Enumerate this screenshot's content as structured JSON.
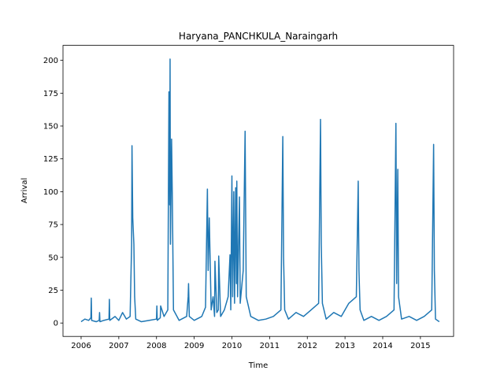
{
  "chart_data": {
    "type": "line",
    "title": "Haryana_PANCHKULA_Naraingarh",
    "x_label": "Time",
    "y_label": "Arrival",
    "x": [
      2006.0,
      2006.1,
      2006.2,
      2006.26,
      2006.27,
      2006.28,
      2006.4,
      2006.48,
      2006.49,
      2006.5,
      2006.6,
      2006.74,
      2006.75,
      2006.76,
      2006.9,
      2007.0,
      2007.1,
      2007.2,
      2007.3,
      2007.34,
      2007.35,
      2007.37,
      2007.4,
      2007.42,
      2007.45,
      2007.6,
      2007.8,
      2008.0,
      2008.01,
      2008.02,
      2008.1,
      2008.11,
      2008.2,
      2008.3,
      2008.33,
      2008.35,
      2008.36,
      2008.37,
      2008.4,
      2008.42,
      2008.45,
      2008.6,
      2008.8,
      2008.84,
      2008.85,
      2008.87,
      2009.0,
      2009.2,
      2009.3,
      2009.35,
      2009.37,
      2009.4,
      2009.45,
      2009.5,
      2009.54,
      2009.55,
      2009.6,
      2009.64,
      2009.65,
      2009.7,
      2009.8,
      2009.9,
      2009.95,
      2009.97,
      2010.0,
      2010.02,
      2010.05,
      2010.07,
      2010.1,
      2010.12,
      2010.13,
      2010.15,
      2010.2,
      2010.22,
      2010.3,
      2010.35,
      2010.38,
      2010.5,
      2010.7,
      2010.9,
      2011.1,
      2011.3,
      2011.35,
      2011.37,
      2011.4,
      2011.5,
      2011.7,
      2011.9,
      2012.1,
      2012.3,
      2012.35,
      2012.37,
      2012.4,
      2012.5,
      2012.7,
      2012.9,
      2013.1,
      2013.3,
      2013.35,
      2013.37,
      2013.4,
      2013.5,
      2013.7,
      2013.9,
      2014.1,
      2014.3,
      2014.35,
      2014.37,
      2014.4,
      2014.42,
      2014.5,
      2014.7,
      2014.9,
      2015.1,
      2015.3,
      2015.35,
      2015.37,
      2015.4,
      2015.5
    ],
    "series": [
      {
        "name": "Arrival",
        "color": "#1f77b4",
        "values": [
          1,
          3,
          2,
          4,
          19,
          2,
          1,
          2,
          8,
          1,
          2,
          3,
          18,
          2,
          5,
          2,
          8,
          3,
          5,
          60,
          135,
          80,
          60,
          20,
          3,
          1,
          2,
          3,
          13,
          2,
          4,
          13,
          5,
          10,
          176,
          90,
          201,
          60,
          140,
          95,
          10,
          2,
          5,
          20,
          30,
          5,
          2,
          5,
          12,
          102,
          40,
          80,
          10,
          20,
          5,
          47,
          8,
          10,
          51,
          5,
          10,
          20,
          52,
          10,
          112,
          20,
          100,
          15,
          103,
          30,
          108,
          20,
          96,
          15,
          40,
          146,
          20,
          5,
          2,
          3,
          5,
          10,
          142,
          50,
          10,
          3,
          8,
          5,
          10,
          15,
          155,
          60,
          15,
          3,
          8,
          5,
          15,
          20,
          108,
          40,
          10,
          2,
          5,
          2,
          5,
          10,
          152,
          30,
          117,
          20,
          3,
          5,
          2,
          5,
          10,
          136,
          40,
          3,
          1
        ]
      }
    ],
    "xlim": [
      2005.52,
      2015.88
    ],
    "xticks": [
      2006,
      2007,
      2008,
      2009,
      2010,
      2011,
      2012,
      2013,
      2014,
      2015
    ],
    "ylim": [
      -10.2,
      211.4
    ],
    "yticks": [
      0,
      25,
      50,
      75,
      100,
      125,
      150,
      175,
      200
    ]
  }
}
